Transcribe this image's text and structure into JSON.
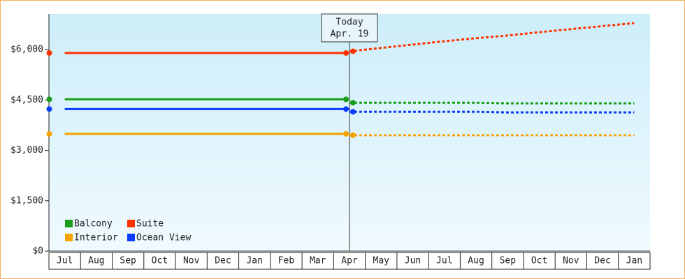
{
  "chart_data": {
    "type": "line",
    "categories": [
      "Jul",
      "Aug",
      "Sep",
      "Oct",
      "Nov",
      "Dec",
      "Jan",
      "Feb",
      "Mar",
      "Apr",
      "May",
      "Jun",
      "Jul",
      "Aug",
      "Sep",
      "Oct",
      "Nov",
      "Dec",
      "Jan"
    ],
    "annotation": [
      "Today",
      "Apr. 19"
    ],
    "ylim": [
      0,
      7000
    ],
    "yticks": [
      {
        "value": 0,
        "label": "$0"
      },
      {
        "value": 1500,
        "label": "$1,500"
      },
      {
        "value": 3000,
        "label": "$3,000"
      },
      {
        "value": 4500,
        "label": "$4,500"
      },
      {
        "value": 6000,
        "label": "$6,000"
      }
    ],
    "legend": "lower left",
    "series": [
      {
        "name": "Balcony",
        "color": "#1a9e1a",
        "values": [
          4520,
          4520,
          4520,
          4520,
          4520,
          4520,
          4520,
          4520,
          4520,
          4520,
          null,
          null,
          null,
          null,
          null,
          null,
          null,
          null,
          null
        ],
        "forecast": [
          null,
          null,
          null,
          null,
          null,
          null,
          null,
          null,
          null,
          4420,
          4420,
          4420,
          4420,
          4420,
          4400,
          4400,
          4400,
          4400,
          4400
        ]
      },
      {
        "name": "Suite",
        "color": "#ff3300",
        "values": [
          5900,
          5900,
          5900,
          5900,
          5900,
          5900,
          5900,
          5900,
          5900,
          5900,
          null,
          null,
          null,
          null,
          null,
          null,
          null,
          null,
          null
        ],
        "forecast": [
          null,
          null,
          null,
          null,
          null,
          null,
          null,
          null,
          null,
          5950,
          6050,
          6150,
          6250,
          6340,
          6420,
          6520,
          6610,
          6700,
          6790
        ]
      },
      {
        "name": "Interior",
        "color": "#f5a300",
        "values": [
          3490,
          3490,
          3490,
          3490,
          3490,
          3490,
          3490,
          3490,
          3490,
          3490,
          null,
          null,
          null,
          null,
          null,
          null,
          null,
          null,
          null
        ],
        "forecast": [
          null,
          null,
          null,
          null,
          null,
          null,
          null,
          null,
          null,
          3450,
          3450,
          3450,
          3450,
          3450,
          3450,
          3450,
          3450,
          3450,
          3450
        ]
      },
      {
        "name": "Ocean View",
        "color": "#0a3cff",
        "values": [
          4230,
          4230,
          4230,
          4230,
          4230,
          4230,
          4230,
          4230,
          4230,
          4230,
          null,
          null,
          null,
          null,
          null,
          null,
          null,
          null,
          null
        ],
        "forecast": [
          null,
          null,
          null,
          null,
          null,
          null,
          null,
          null,
          null,
          4150,
          4150,
          4150,
          4150,
          4150,
          4130,
          4130,
          4130,
          4130,
          4130
        ]
      }
    ]
  }
}
